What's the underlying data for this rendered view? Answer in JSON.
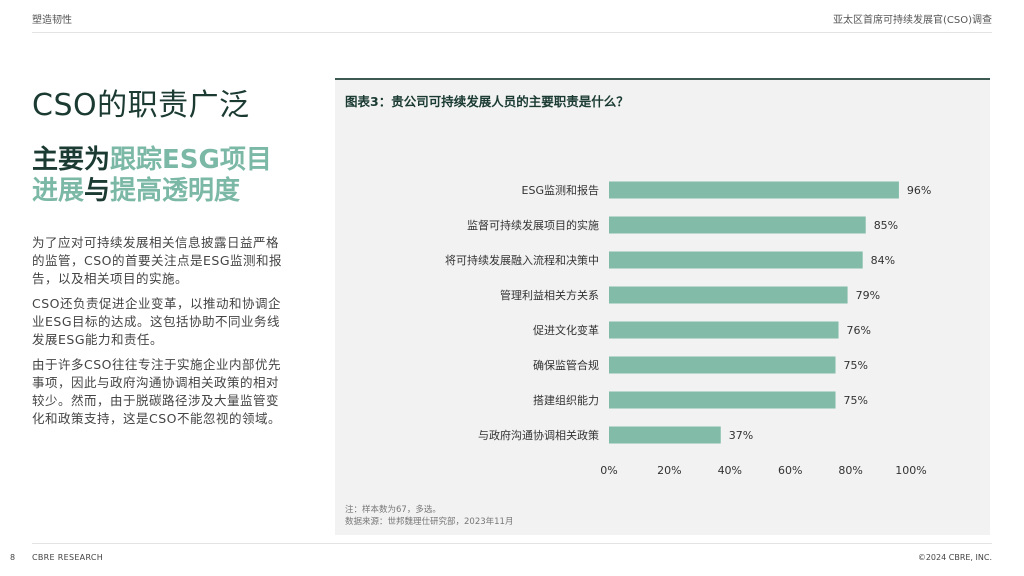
{
  "header": {
    "section": "塑造韧性",
    "report": "亚太区首席可持续发展官(CSO)调查"
  },
  "title": "CSO的职责广泛",
  "subtitle": {
    "part1": "主要为",
    "part2": "跟踪ESG项目",
    "part3": "进展",
    "part4": "与",
    "part5": "提高透明度"
  },
  "body": {
    "p1": "为了应对可持续发展相关信息披露日益严格的监管，CSO的首要关注点是ESG监测和报告，以及相关项目的实施。",
    "p2": "CSO还负责促进企业变革，以推动和协调企业ESG目标的达成。这包括协助不同业务线发展ESG能力和责任。",
    "p3": "由于许多CSO往往专注于实施企业内部优先事项，因此与政府沟通协调相关政策的相对较少。然而，由于脱碳路径涉及大量监管变化和政策支持，这是CSO不能忽视的领域。"
  },
  "chart_data": {
    "type": "bar",
    "orientation": "horizontal",
    "title": "图表3：贵公司可持续发展人员的主要职责是什么？",
    "categories": [
      "ESG监测和报告",
      "监督可持续发展项目的实施",
      "将可持续发展融入流程和决策中",
      "管理利益相关方关系",
      "促进文化变革",
      "确保监管合规",
      "搭建组织能力",
      "与政府沟通协调相关政策"
    ],
    "values": [
      96,
      85,
      84,
      79,
      76,
      75,
      75,
      37
    ],
    "value_labels": [
      "96%",
      "85%",
      "84%",
      "79%",
      "76%",
      "75%",
      "75%",
      "37%"
    ],
    "xticks": [
      "0%",
      "20%",
      "40%",
      "60%",
      "80%",
      "100%"
    ],
    "xlim": [
      0,
      100
    ],
    "bar_color": "#82bca9",
    "grid": false
  },
  "notes": {
    "n1": "注：样本数为67，多选。",
    "n2": "数据来源：世邦魏理仕研究部，2023年11月"
  },
  "footer": {
    "page": "8",
    "brand": "CBRE RESEARCH",
    "copyright": "©2024 CBRE, INC."
  }
}
